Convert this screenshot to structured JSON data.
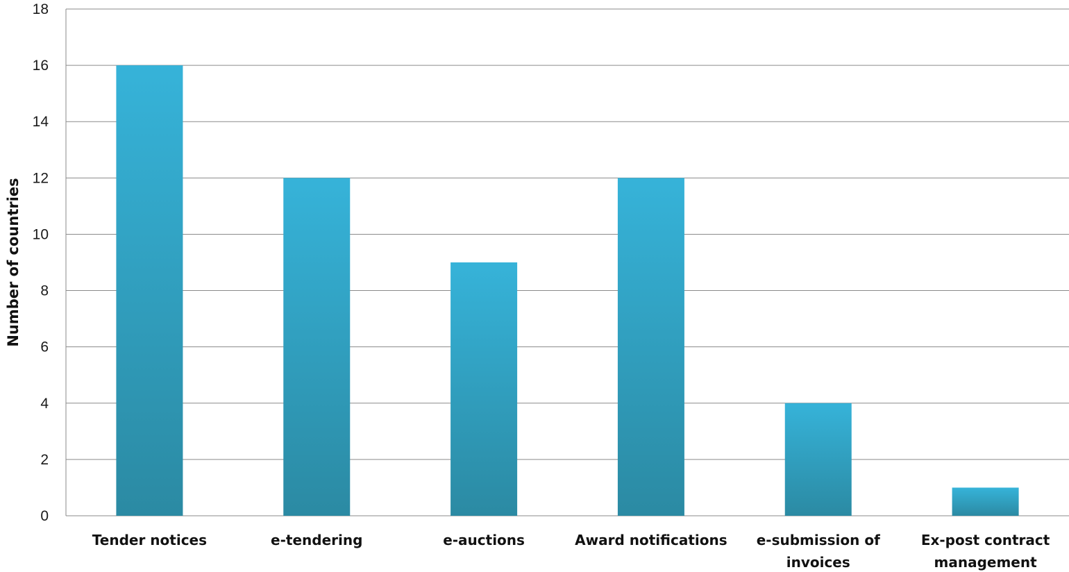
{
  "chart_data": {
    "type": "bar",
    "title": "",
    "xlabel": "",
    "ylabel": "Number of countries",
    "categories": [
      [
        "Tender notices"
      ],
      [
        "e-tendering"
      ],
      [
        "e-auctions"
      ],
      [
        "Award notifications"
      ],
      [
        "e-submission of",
        "invoices"
      ],
      [
        "Ex-post contract",
        "management"
      ]
    ],
    "values": [
      16,
      12,
      9,
      12,
      4,
      1
    ],
    "ylim": [
      0,
      18
    ],
    "yticks": [
      0,
      2,
      4,
      6,
      8,
      10,
      12,
      14,
      16,
      18
    ],
    "grid": true,
    "legend": "none",
    "colors": {
      "bar_top": "#36b3d9",
      "bar_bottom": "#2b8aa3",
      "gridline": "#8a8a8a",
      "axis": "#8a8a8a"
    }
  }
}
